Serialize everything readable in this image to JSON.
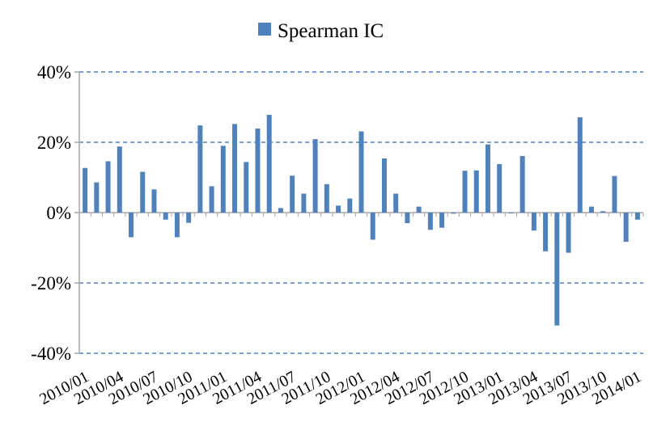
{
  "chart_data": {
    "type": "bar",
    "title": "",
    "xlabel": "",
    "ylabel": "",
    "legend": {
      "position": "top-center",
      "entries": [
        "Spearman IC"
      ]
    },
    "grid": true,
    "ylim": [
      -40,
      40
    ],
    "y_ticks": [
      40,
      20,
      0,
      -20,
      -40
    ],
    "y_tick_labels": [
      "40%",
      "20%",
      "0%",
      "-20%",
      "-40%"
    ],
    "x_tick_labels": [
      "2010/01",
      "2010/04",
      "2010/07",
      "2010/10",
      "2011/01",
      "2011/04",
      "2011/07",
      "2011/10",
      "2012/01",
      "2012/04",
      "2012/07",
      "2012/10",
      "2013/01",
      "2013/04",
      "2013/07",
      "2013/10",
      "2014/01"
    ],
    "colors": {
      "bar": "#4F81BD",
      "grid": "#4F81BD",
      "axis": "#A6A6A6"
    },
    "categories": [
      "2010/01",
      "2010/02",
      "2010/03",
      "2010/04",
      "2010/05",
      "2010/06",
      "2010/07",
      "2010/08",
      "2010/09",
      "2010/10",
      "2010/11",
      "2010/12",
      "2011/01",
      "2011/02",
      "2011/03",
      "2011/04",
      "2011/05",
      "2011/06",
      "2011/07",
      "2011/08",
      "2011/09",
      "2011/10",
      "2011/11",
      "2011/12",
      "2012/01",
      "2012/02",
      "2012/03",
      "2012/04",
      "2012/05",
      "2012/06",
      "2012/07",
      "2012/08",
      "2012/09",
      "2012/10",
      "2012/11",
      "2012/12",
      "2013/01",
      "2013/02",
      "2013/03",
      "2013/04",
      "2013/05",
      "2013/06",
      "2013/07",
      "2013/08",
      "2013/09",
      "2013/10",
      "2013/11",
      "2013/12",
      "2014/01"
    ],
    "series": [
      {
        "name": "Spearman IC",
        "values": [
          12.7,
          8.6,
          14.6,
          18.8,
          -7.0,
          11.6,
          6.6,
          -2.0,
          -7.0,
          -2.9,
          24.8,
          7.5,
          19.0,
          25.2,
          14.4,
          23.9,
          27.8,
          1.3,
          10.5,
          5.4,
          20.9,
          8.1,
          2.0,
          4.0,
          23.1,
          -7.7,
          15.4,
          5.4,
          -3.0,
          1.7,
          -4.9,
          -4.3,
          -0.3,
          11.9,
          12.0,
          19.4,
          13.8,
          -0.2,
          16.1,
          -5.1,
          -11.0,
          -32.1,
          -11.4,
          27.1,
          1.7,
          0.4,
          10.4,
          -8.3,
          -2.0
        ]
      }
    ]
  }
}
